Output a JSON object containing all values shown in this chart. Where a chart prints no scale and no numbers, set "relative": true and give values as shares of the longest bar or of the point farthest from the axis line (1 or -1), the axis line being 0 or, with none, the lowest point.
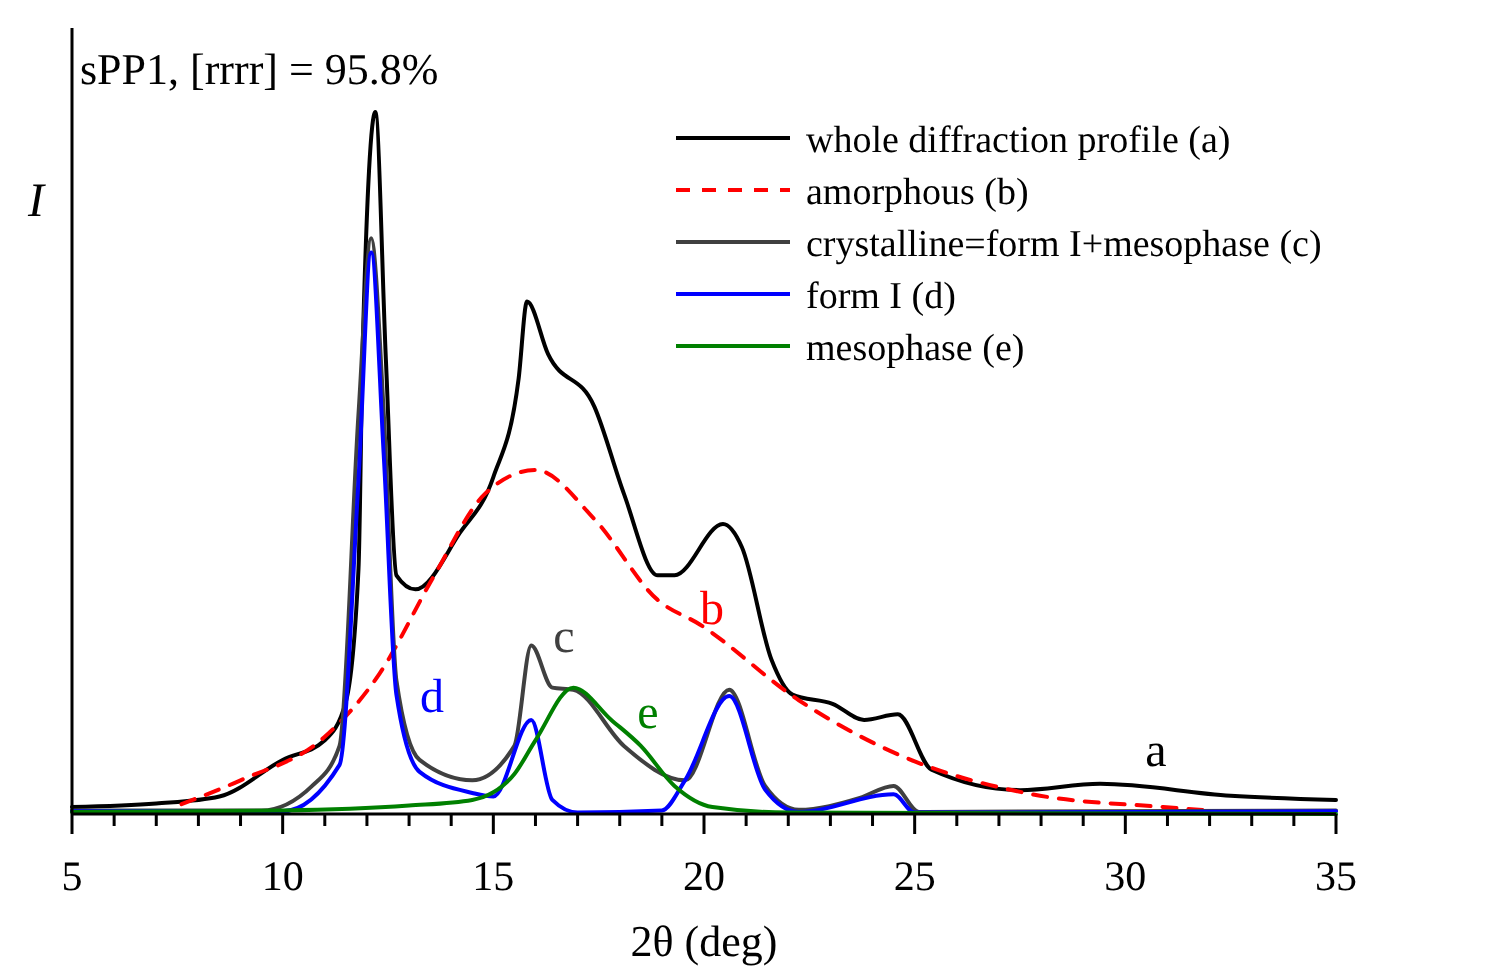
{
  "chart_data": {
    "type": "line",
    "title": "sPP1, [rrrr] = 95.8%",
    "xlabel": "2θ (deg)",
    "ylabel": "I",
    "relative": true,
    "legend": "top right",
    "line_style": "solid",
    "marker": "none",
    "grid": false,
    "xlim": [
      5,
      35
    ],
    "xticks": [
      5,
      {
        "value": 6,
        "label": null
      },
      {
        "value": 7,
        "label": null
      },
      {
        "value": 8,
        "label": null
      },
      {
        "value": 9,
        "label": null
      },
      10,
      {
        "value": 11,
        "label": null
      },
      {
        "value": 12,
        "label": null
      },
      {
        "value": 13,
        "label": null
      },
      {
        "value": 14,
        "label": null
      },
      15,
      {
        "value": 16,
        "label": null
      },
      {
        "value": 17,
        "label": null
      },
      {
        "value": 18,
        "label": null
      },
      {
        "value": 19,
        "label": null
      },
      20,
      {
        "value": 21,
        "label": null
      },
      {
        "value": 22,
        "label": null
      },
      {
        "value": 23,
        "label": null
      },
      {
        "value": 24,
        "label": null
      },
      25,
      {
        "value": 26,
        "label": null
      },
      {
        "value": 27,
        "label": null
      },
      {
        "value": 28,
        "label": null
      },
      {
        "value": 29,
        "label": null
      },
      30,
      {
        "value": 31,
        "label": null
      },
      {
        "value": 32,
        "label": null
      },
      {
        "value": 33,
        "label": null
      },
      {
        "value": 34,
        "label": null
      },
      35
    ],
    "series": [
      {
        "name": "whole diffraction profile (a)",
        "color": "#000000",
        "x": [
          5,
          7,
          8.5,
          10,
          11,
          11.5,
          11.8,
          11.9,
          12.2,
          12.45,
          12.7,
          13.15,
          14.2,
          15,
          15.6,
          15.8,
          16.3,
          17.4,
          18.1,
          18.9,
          19.3,
          20.45,
          20.9,
          21.6,
          22.1,
          23.05,
          23.8,
          24.6,
          25.4,
          27.5,
          29.4,
          32.5,
          35
        ],
        "values": [
          0.01,
          0.015,
          0.025,
          0.077,
          0.105,
          0.16,
          0.35,
          0.667,
          1,
          0.647,
          0.34,
          0.32,
          0.4,
          0.48,
          0.62,
          0.73,
          0.655,
          0.58,
          0.456,
          0.34,
          0.34,
          0.413,
          0.38,
          0.22,
          0.17,
          0.157,
          0.134,
          0.142,
          0.063,
          0.034,
          0.043,
          0.026,
          0.02
        ]
      },
      {
        "name": "amorphous (b)",
        "color": "#ff0000",
        "line_style": "dashed",
        "x": [
          7.6,
          9,
          11,
          12.3,
          13.6,
          14.8,
          16,
          17.4,
          18.9,
          19.9,
          22.25,
          24.6,
          27.8,
          30.9,
          32
        ],
        "values": [
          0.014,
          0.048,
          0.11,
          0.2,
          0.34,
          0.456,
          0.49,
          0.42,
          0.305,
          0.27,
          0.162,
          0.085,
          0.028,
          0.01,
          0.005
        ]
      },
      {
        "name": "crystalline=form I+mesophase (c)",
        "color": "#404040",
        "x": [
          5,
          9.5,
          10.7,
          11.35,
          11.8,
          12.1,
          12.4,
          12.7,
          13.25,
          14.5,
          15.5,
          15.9,
          16.4,
          16.9,
          18.1,
          19.55,
          20.6,
          21.45,
          22.25,
          23.7,
          24.5,
          25.1,
          35
        ],
        "values": [
          0.005,
          0.005,
          0.04,
          0.097,
          0.57,
          0.82,
          0.57,
          0.19,
          0.077,
          0.048,
          0.097,
          0.24,
          0.18,
          0.177,
          0.097,
          0.048,
          0.177,
          0.04,
          0.006,
          0.023,
          0.04,
          0.003,
          0.005
        ]
      },
      {
        "name": "form I (d)",
        "color": "#0000ff",
        "x": [
          5,
          10,
          11.35,
          11.8,
          12.1,
          12.4,
          12.7,
          13.25,
          14.5,
          15,
          15.9,
          16.4,
          17,
          19,
          19.55,
          20.6,
          21.45,
          22.25,
          24.5,
          25,
          35
        ],
        "values": [
          0.004,
          0.004,
          0.07,
          0.476,
          0.8,
          0.51,
          0.17,
          0.06,
          0.03,
          0.025,
          0.134,
          0.02,
          0.002,
          0.005,
          0.048,
          0.168,
          0.035,
          0.003,
          0.028,
          0.002,
          0.004
        ]
      },
      {
        "name": "mesophase (e)",
        "color": "#008000",
        "x": [
          5,
          10,
          13,
          14.5,
          15.5,
          16,
          16.9,
          17.8,
          18.5,
          19.3,
          20.2,
          22,
          35
        ],
        "values": [
          0.003,
          0.005,
          0.012,
          0.02,
          0.057,
          0.105,
          0.18,
          0.134,
          0.097,
          0.04,
          0.01,
          0.002,
          0
        ]
      }
    ],
    "annotations": [
      "a",
      "b",
      "c",
      "d",
      "e"
    ]
  }
}
